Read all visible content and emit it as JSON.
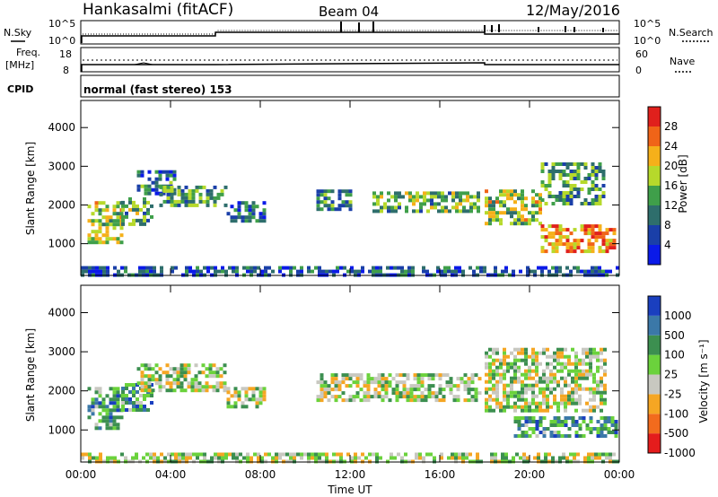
{
  "header": {
    "station": "Hankasalmi (fitACF)",
    "beam": "Beam 04",
    "date": "12/May/2016"
  },
  "strips": {
    "nsky_label": "N.Sky",
    "nsearch_label": "N.Search",
    "freq_label": "Freq.",
    "freq_unit": "[MHz]",
    "nave_label": "Nave",
    "cpid_label": "CPID",
    "cpid_text": "normal (fast stereo) 153",
    "noise_ticks_left": [
      "10^5",
      "10^0"
    ],
    "noise_ticks_right": [
      "10^5",
      "10^0"
    ],
    "freq_ticks": [
      "18",
      "8"
    ],
    "nave_ticks": [
      "60",
      "0"
    ]
  },
  "chart_data": [
    {
      "type": "heatmap",
      "panel": "power",
      "ylabel": "Slant Range [km]",
      "yticks": [
        1000,
        2000,
        3000,
        4000
      ],
      "ylim": [
        180,
        4700
      ],
      "xlim": [
        0,
        24
      ],
      "colorbar_label": "Power [dB]",
      "colorbar_ticks": [
        4,
        8,
        12,
        16,
        20,
        24,
        28
      ],
      "colorbar_range": [
        0,
        32
      ],
      "colors": [
        "#0a1ae8",
        "#1a3fa8",
        "#2e6e6c",
        "#3f9f4a",
        "#b6d92b",
        "#f5b01a",
        "#f06418",
        "#e0201c"
      ],
      "regions": [
        {
          "t0": 0.3,
          "t1": 1.8,
          "r0": 1000,
          "r1": 2100,
          "level": 0.55
        },
        {
          "t0": 1.8,
          "t1": 3.2,
          "r0": 1500,
          "r1": 2200,
          "level": 0.45
        },
        {
          "t0": 2.5,
          "t1": 4.2,
          "r0": 2300,
          "r1": 2900,
          "level": 0.3
        },
        {
          "t0": 3.5,
          "t1": 6.5,
          "r0": 2000,
          "r1": 2500,
          "level": 0.4
        },
        {
          "t0": 6.5,
          "t1": 8.2,
          "r0": 1600,
          "r1": 2100,
          "level": 0.25
        },
        {
          "t0": 10.5,
          "t1": 12.0,
          "r0": 1900,
          "r1": 2400,
          "level": 0.35
        },
        {
          "t0": 13.0,
          "t1": 17.8,
          "r0": 1800,
          "r1": 2350,
          "level": 0.45
        },
        {
          "t0": 18.0,
          "t1": 20.5,
          "r0": 1500,
          "r1": 2400,
          "level": 0.55
        },
        {
          "t0": 20.5,
          "t1": 23.3,
          "r0": 2000,
          "r1": 3100,
          "level": 0.4
        },
        {
          "t0": 20.5,
          "t1": 23.8,
          "r0": 800,
          "r1": 1500,
          "level": 0.75
        },
        {
          "t0": 0.0,
          "t1": 24.0,
          "r0": 200,
          "r1": 420,
          "level": 0.2
        }
      ]
    },
    {
      "type": "heatmap",
      "panel": "velocity",
      "ylabel": "Slant Range [km]",
      "xlabel": "Time UT",
      "xticks": [
        "00:00",
        "04:00",
        "08:00",
        "12:00",
        "16:00",
        "20:00",
        "00:00"
      ],
      "yticks": [
        1000,
        2000,
        3000,
        4000
      ],
      "ylim": [
        180,
        4700
      ],
      "xlim": [
        0,
        24
      ],
      "colorbar_label": "Velocity [m s⁻¹]",
      "colorbar_ticks": [
        1000,
        500,
        100,
        25,
        -25,
        -100,
        -500,
        -1000
      ],
      "colors": [
        "#1a3fbf",
        "#3b78a8",
        "#3c8f50",
        "#6bd23c",
        "#c8c8c0",
        "#f5a623",
        "#f26b1d",
        "#e41c1c"
      ],
      "regions": [
        {
          "t0": 0.3,
          "t1": 1.8,
          "r0": 1000,
          "r1": 2100,
          "level": 0.3
        },
        {
          "t0": 1.8,
          "t1": 3.2,
          "r0": 1500,
          "r1": 2200,
          "level": 0.3
        },
        {
          "t0": 2.5,
          "t1": 6.5,
          "r0": 2000,
          "r1": 2700,
          "level": 0.5
        },
        {
          "t0": 6.5,
          "t1": 8.2,
          "r0": 1600,
          "r1": 2100,
          "level": 0.5
        },
        {
          "t0": 10.5,
          "t1": 17.8,
          "r0": 1800,
          "r1": 2450,
          "level": 0.5
        },
        {
          "t0": 18.0,
          "t1": 23.3,
          "r0": 1500,
          "r1": 3100,
          "level": 0.5
        },
        {
          "t0": 19.3,
          "t1": 23.8,
          "r0": 850,
          "r1": 1350,
          "level": 0.3
        },
        {
          "t0": 0.0,
          "t1": 24.0,
          "r0": 200,
          "r1": 420,
          "level": 0.5
        }
      ]
    }
  ]
}
